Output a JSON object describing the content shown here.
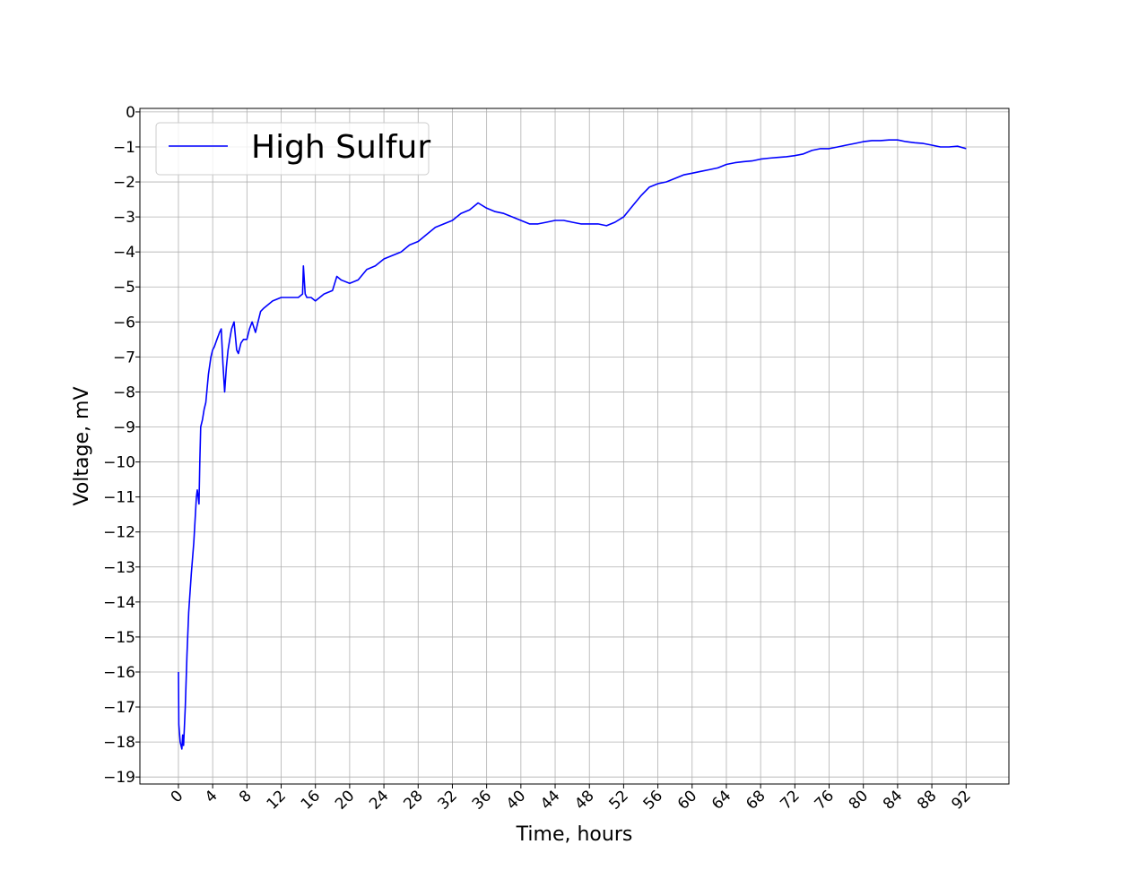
{
  "chart_data": {
    "type": "line",
    "xlabel": "Time, hours",
    "ylabel": "Voltage, mV",
    "xlim": [
      -4.5,
      97
    ],
    "ylim": [
      -19.2,
      0.1
    ],
    "x_ticks": [
      0,
      4,
      8,
      12,
      16,
      20,
      24,
      28,
      32,
      36,
      40,
      44,
      48,
      52,
      56,
      60,
      64,
      68,
      72,
      76,
      80,
      84,
      88,
      92
    ],
    "y_ticks": [
      0,
      -1,
      -2,
      -3,
      -4,
      -5,
      -6,
      -7,
      -8,
      -9,
      -10,
      -11,
      -12,
      -13,
      -14,
      -15,
      -16,
      -17,
      -18,
      -19
    ],
    "grid": true,
    "legend_position": "top-left",
    "series": [
      {
        "name": "High Sulfur",
        "color": "#0000ff",
        "x": [
          0.0,
          0.05,
          0.2,
          0.4,
          0.5,
          0.6,
          0.8,
          1.0,
          1.2,
          1.5,
          1.8,
          2.1,
          2.2,
          2.4,
          2.5,
          2.6,
          2.8,
          3.0,
          3.2,
          3.5,
          3.8,
          4.0,
          4.2,
          4.5,
          4.8,
          5.0,
          5.2,
          5.4,
          5.6,
          5.8,
          6.0,
          6.2,
          6.5,
          6.8,
          7.0,
          7.3,
          7.6,
          8.0,
          8.3,
          8.6,
          9.0,
          9.3,
          9.6,
          10.0,
          11.0,
          12.0,
          13.0,
          14.0,
          14.5,
          14.6,
          14.8,
          15.0,
          15.5,
          16.0,
          16.5,
          17.0,
          18.0,
          18.5,
          19.0,
          20.0,
          21.0,
          22.0,
          23.0,
          24.0,
          25.0,
          26.0,
          27.0,
          28.0,
          29.0,
          30.0,
          31.0,
          32.0,
          33.0,
          34.0,
          35.0,
          36.0,
          37.0,
          38.0,
          39.0,
          40.0,
          41.0,
          42.0,
          43.0,
          44.0,
          45.0,
          46.0,
          47.0,
          48.0,
          49.0,
          50.0,
          51.0,
          52.0,
          53.0,
          54.0,
          55.0,
          56.0,
          57.0,
          58.0,
          59.0,
          60.0,
          61.0,
          62.0,
          63.0,
          64.0,
          65.0,
          66.0,
          67.0,
          68.0,
          69.0,
          70.0,
          71.0,
          72.0,
          73.0,
          74.0,
          75.0,
          76.0,
          77.0,
          78.0,
          79.0,
          80.0,
          81.0,
          82.0,
          83.0,
          84.0,
          85.0,
          86.0,
          87.0,
          88.0,
          89.0,
          90.0,
          91.0,
          92.0
        ],
        "y": [
          -16.0,
          -17.5,
          -18.0,
          -18.2,
          -17.8,
          -18.1,
          -17.0,
          -15.5,
          -14.3,
          -13.2,
          -12.3,
          -11.0,
          -10.8,
          -11.2,
          -10.0,
          -9.0,
          -8.8,
          -8.5,
          -8.3,
          -7.5,
          -7.0,
          -6.8,
          -6.7,
          -6.5,
          -6.3,
          -6.2,
          -7.2,
          -8.0,
          -7.3,
          -6.8,
          -6.5,
          -6.2,
          -6.0,
          -6.8,
          -6.9,
          -6.6,
          -6.5,
          -6.5,
          -6.2,
          -6.0,
          -6.3,
          -6.0,
          -5.7,
          -5.6,
          -5.4,
          -5.3,
          -5.3,
          -5.3,
          -5.2,
          -4.4,
          -5.2,
          -5.3,
          -5.3,
          -5.4,
          -5.3,
          -5.2,
          -5.1,
          -4.7,
          -4.8,
          -4.9,
          -4.8,
          -4.5,
          -4.4,
          -4.2,
          -4.1,
          -4.0,
          -3.8,
          -3.7,
          -3.5,
          -3.3,
          -3.2,
          -3.1,
          -2.9,
          -2.8,
          -2.6,
          -2.75,
          -2.85,
          -2.9,
          -3.0,
          -3.1,
          -3.2,
          -3.2,
          -3.15,
          -3.1,
          -3.1,
          -3.15,
          -3.2,
          -3.2,
          -3.2,
          -3.25,
          -3.15,
          -3.0,
          -2.7,
          -2.4,
          -2.15,
          -2.05,
          -2.0,
          -1.9,
          -1.8,
          -1.75,
          -1.7,
          -1.65,
          -1.6,
          -1.5,
          -1.45,
          -1.42,
          -1.4,
          -1.35,
          -1.32,
          -1.3,
          -1.28,
          -1.25,
          -1.2,
          -1.1,
          -1.05,
          -1.05,
          -1.0,
          -0.95,
          -0.9,
          -0.85,
          -0.82,
          -0.82,
          -0.8,
          -0.8,
          -0.85,
          -0.88,
          -0.9,
          -0.95,
          -1.0,
          -1.0,
          -0.98,
          -1.05
        ]
      }
    ]
  }
}
